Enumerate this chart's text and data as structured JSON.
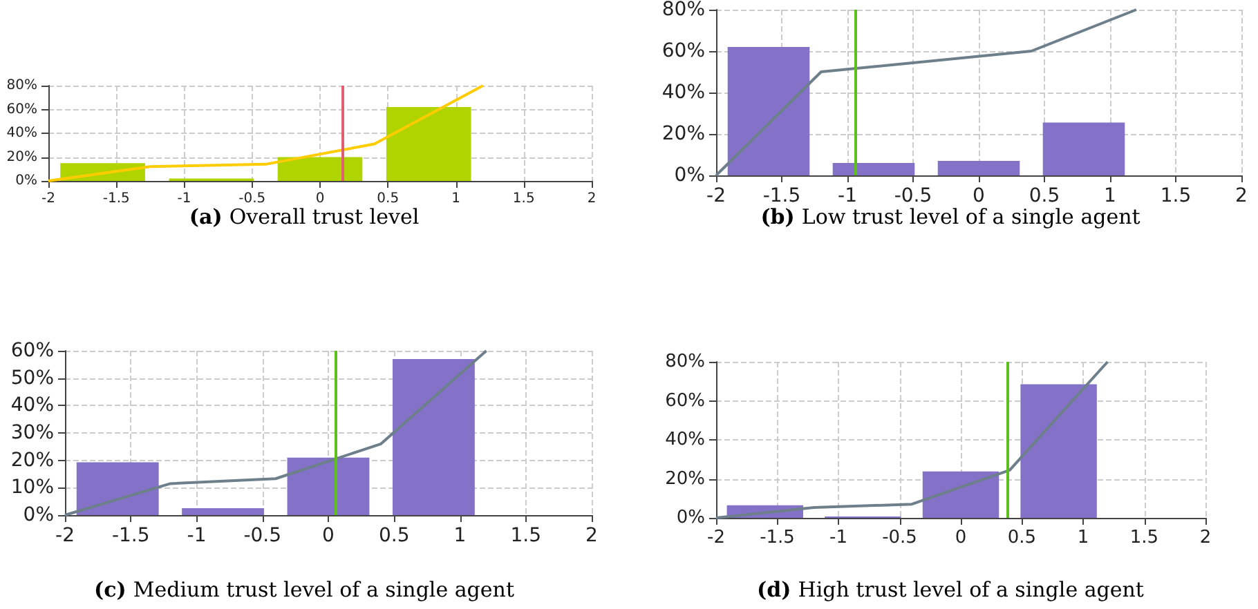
{
  "chart_data": [
    {
      "type": "bar",
      "title": "(a) Overall trust level",
      "x": [
        -1.6,
        -0.8,
        0,
        0.8
      ],
      "xlim": [
        -2,
        2
      ],
      "xticks": [
        -2,
        -1.5,
        -1,
        -0.5,
        0,
        0.5,
        1,
        1.5,
        2
      ],
      "ylim": [
        0,
        80
      ],
      "yticks": [
        {
          "value": 0,
          "label": "0%"
        },
        {
          "value": 20,
          "label": "20%"
        },
        {
          "value": 40,
          "label": "40%"
        },
        {
          "value": 60,
          "label": "60%"
        },
        {
          "value": 80,
          "label": "80%"
        }
      ],
      "grid": true,
      "marker": "none",
      "series": [
        {
          "color": "#b0d400",
          "values": [
            15,
            2,
            20,
            62
          ]
        },
        {
          "type": "line",
          "color": "#ffcc00",
          "x": [
            -2,
            -1.25,
            -0.4,
            0.4,
            1.2
          ],
          "values": [
            0,
            12,
            14,
            31,
            80
          ]
        }
      ],
      "ref_lines": [
        {
          "axis": "x",
          "value": 0.17,
          "color": "#e06070"
        }
      ]
    },
    {
      "type": "bar",
      "title": "(b) Low trust level of a single agent",
      "x": [
        -1.6,
        -0.8,
        0,
        0.8
      ],
      "xlim": [
        -2,
        2
      ],
      "xticks": [
        -2,
        -1.5,
        -1,
        -0.5,
        0,
        0.5,
        1,
        1.5,
        2
      ],
      "ylim": [
        0,
        80
      ],
      "yticks": [
        {
          "value": 0,
          "label": "0%"
        },
        {
          "value": 20,
          "label": "20%"
        },
        {
          "value": 40,
          "label": "40%"
        },
        {
          "value": 60,
          "label": "60%"
        },
        {
          "value": 80,
          "label": "80%"
        }
      ],
      "grid": true,
      "marker": "none",
      "series": [
        {
          "color": "#8471c8",
          "values": [
            62,
            6,
            7,
            25.5
          ]
        },
        {
          "type": "line",
          "color": "#6e7f8c",
          "x": [
            -2,
            -1.2,
            0.4,
            1.2
          ],
          "values": [
            0,
            50,
            60,
            80
          ]
        }
      ],
      "ref_lines": [
        {
          "axis": "x",
          "value": -0.94,
          "color": "#5cbf1a"
        }
      ]
    },
    {
      "type": "bar",
      "title": "(c) Medium trust level of a single agent",
      "x": [
        -1.6,
        -0.8,
        0,
        0.8
      ],
      "xlim": [
        -2,
        2
      ],
      "xticks": [
        -2,
        -1.5,
        -1,
        -0.5,
        0,
        0.5,
        1,
        1.5,
        2
      ],
      "ylim": [
        0,
        60
      ],
      "yticks": [
        {
          "value": 0,
          "label": "0%"
        },
        {
          "value": 10,
          "label": "10%"
        },
        {
          "value": 20,
          "label": "20%"
        },
        {
          "value": 30,
          "label": "30%"
        },
        {
          "value": 40,
          "label": "40%"
        },
        {
          "value": 50,
          "label": "50%"
        },
        {
          "value": 60,
          "label": "60%"
        }
      ],
      "grid": true,
      "marker": "none",
      "series": [
        {
          "color": "#8471c8",
          "values": [
            19.3,
            2.5,
            21,
            57
          ]
        },
        {
          "type": "line",
          "color": "#6e7f8c",
          "x": [
            -2,
            -1.2,
            -0.4,
            0.4,
            1.2
          ],
          "values": [
            0,
            11.5,
            13.3,
            26,
            60
          ]
        }
      ],
      "ref_lines": [
        {
          "axis": "x",
          "value": 0.06,
          "color": "#5cbf1a"
        }
      ]
    },
    {
      "type": "bar",
      "title": "(d) High trust level of a single agent",
      "x": [
        -1.6,
        -0.8,
        0,
        0.8
      ],
      "xlim": [
        -2,
        2
      ],
      "xticks": [
        -2,
        -1.5,
        -1,
        -0.5,
        0,
        0.5,
        1,
        1.5,
        2
      ],
      "ylim": [
        0,
        80
      ],
      "yticks": [
        {
          "value": 0,
          "label": "0%"
        },
        {
          "value": 20,
          "label": "20%"
        },
        {
          "value": 40,
          "label": "40%"
        },
        {
          "value": 60,
          "label": "60%"
        },
        {
          "value": 80,
          "label": "80%"
        }
      ],
      "grid": true,
      "marker": "none",
      "series": [
        {
          "color": "#8471c8",
          "values": [
            6.5,
            0.7,
            23.8,
            68.5
          ]
        },
        {
          "type": "line",
          "color": "#6e7f8c",
          "x": [
            -2,
            -1.2,
            -0.4,
            0.4,
            1.2
          ],
          "values": [
            0,
            5.3,
            7,
            24.5,
            80
          ]
        }
      ],
      "ref_lines": [
        {
          "axis": "x",
          "value": 0.38,
          "color": "#5cbf1a"
        }
      ]
    }
  ]
}
